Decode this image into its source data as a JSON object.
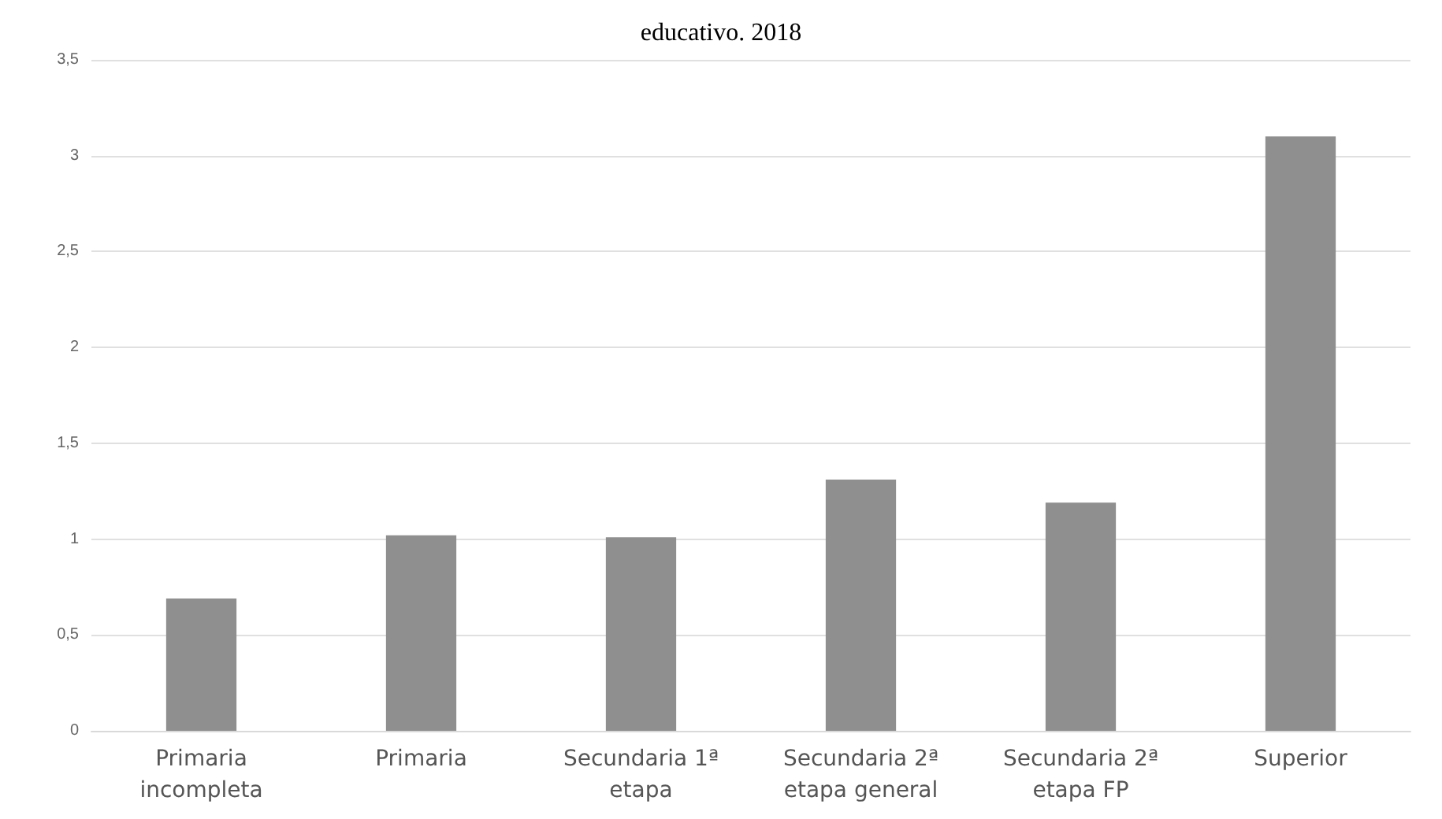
{
  "chart_data": {
    "type": "bar",
    "title": "educativo. 2018",
    "categories": [
      "Primaria\nincompleta",
      "Primaria",
      "Secundaria 1ª\netapa",
      "Secundaria 2ª\netapa general",
      "Secundaria 2ª\netapa FP",
      "Superior"
    ],
    "values": [
      0.69,
      1.02,
      1.01,
      1.31,
      1.19,
      3.1
    ],
    "color": "#8f8f8f",
    "ylim": [
      0,
      3.5
    ],
    "yticks": [
      0,
      {
        "value": 0.5,
        "label": "0,5"
      },
      1,
      {
        "value": 1.5,
        "label": "1,5"
      },
      2,
      {
        "value": 2.5,
        "label": "2,5"
      },
      3,
      {
        "value": 3.5,
        "label": "3,5"
      }
    ],
    "grid": true
  }
}
